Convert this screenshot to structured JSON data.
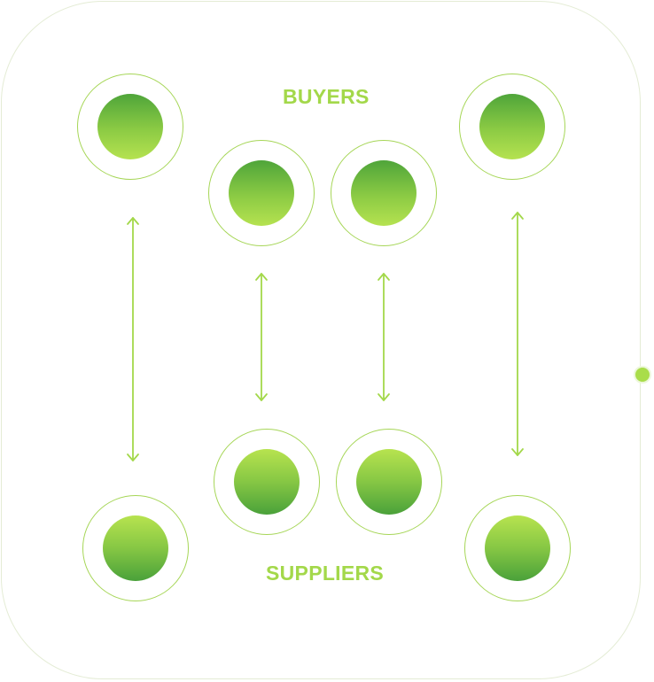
{
  "labels": {
    "buyers": "BUYERS",
    "suppliers": "SUPPLIERS"
  },
  "colors": {
    "accent": "#a3d84a",
    "ring": "#a6d657",
    "node_dark": "#4aa13a",
    "node_light": "#b7e34f",
    "panel_border": "#e4ecd5"
  },
  "nodes": {
    "buyers": [
      "buyer-1",
      "buyer-2",
      "buyer-3",
      "buyer-4"
    ],
    "suppliers": [
      "supplier-1",
      "supplier-2",
      "supplier-3",
      "supplier-4"
    ]
  },
  "links": [
    {
      "from": "buyer-1",
      "to": "supplier-1",
      "direction": "bidirectional"
    },
    {
      "from": "buyer-2",
      "to": "supplier-2",
      "direction": "bidirectional"
    },
    {
      "from": "buyer-3",
      "to": "supplier-3",
      "direction": "bidirectional"
    },
    {
      "from": "buyer-4",
      "to": "supplier-4",
      "direction": "bidirectional"
    }
  ]
}
